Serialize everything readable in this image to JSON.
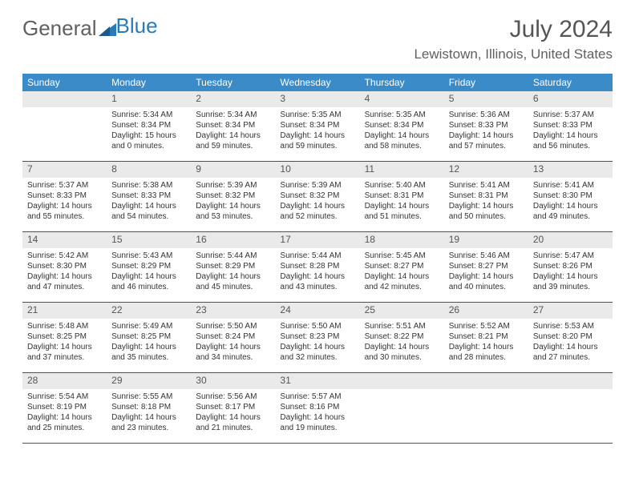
{
  "logo": {
    "text1": "General",
    "text2": "Blue"
  },
  "title": "July 2024",
  "location": "Lewistown, Illinois, United States",
  "colors": {
    "header_bg": "#3b8bc9",
    "daynum_bg": "#eaeaea",
    "border": "#2a5a8a",
    "text": "#333333",
    "logo_gray": "#606060",
    "logo_blue": "#2a7ab8"
  },
  "weekdays": [
    "Sunday",
    "Monday",
    "Tuesday",
    "Wednesday",
    "Thursday",
    "Friday",
    "Saturday"
  ],
  "weeks": [
    {
      "nums": [
        "",
        "1",
        "2",
        "3",
        "4",
        "5",
        "6"
      ],
      "cells": [
        null,
        {
          "sunrise": "Sunrise: 5:34 AM",
          "sunset": "Sunset: 8:34 PM",
          "day1": "Daylight: 15 hours",
          "day2": "and 0 minutes."
        },
        {
          "sunrise": "Sunrise: 5:34 AM",
          "sunset": "Sunset: 8:34 PM",
          "day1": "Daylight: 14 hours",
          "day2": "and 59 minutes."
        },
        {
          "sunrise": "Sunrise: 5:35 AM",
          "sunset": "Sunset: 8:34 PM",
          "day1": "Daylight: 14 hours",
          "day2": "and 59 minutes."
        },
        {
          "sunrise": "Sunrise: 5:35 AM",
          "sunset": "Sunset: 8:34 PM",
          "day1": "Daylight: 14 hours",
          "day2": "and 58 minutes."
        },
        {
          "sunrise": "Sunrise: 5:36 AM",
          "sunset": "Sunset: 8:33 PM",
          "day1": "Daylight: 14 hours",
          "day2": "and 57 minutes."
        },
        {
          "sunrise": "Sunrise: 5:37 AM",
          "sunset": "Sunset: 8:33 PM",
          "day1": "Daylight: 14 hours",
          "day2": "and 56 minutes."
        }
      ]
    },
    {
      "nums": [
        "7",
        "8",
        "9",
        "10",
        "11",
        "12",
        "13"
      ],
      "cells": [
        {
          "sunrise": "Sunrise: 5:37 AM",
          "sunset": "Sunset: 8:33 PM",
          "day1": "Daylight: 14 hours",
          "day2": "and 55 minutes."
        },
        {
          "sunrise": "Sunrise: 5:38 AM",
          "sunset": "Sunset: 8:33 PM",
          "day1": "Daylight: 14 hours",
          "day2": "and 54 minutes."
        },
        {
          "sunrise": "Sunrise: 5:39 AM",
          "sunset": "Sunset: 8:32 PM",
          "day1": "Daylight: 14 hours",
          "day2": "and 53 minutes."
        },
        {
          "sunrise": "Sunrise: 5:39 AM",
          "sunset": "Sunset: 8:32 PM",
          "day1": "Daylight: 14 hours",
          "day2": "and 52 minutes."
        },
        {
          "sunrise": "Sunrise: 5:40 AM",
          "sunset": "Sunset: 8:31 PM",
          "day1": "Daylight: 14 hours",
          "day2": "and 51 minutes."
        },
        {
          "sunrise": "Sunrise: 5:41 AM",
          "sunset": "Sunset: 8:31 PM",
          "day1": "Daylight: 14 hours",
          "day2": "and 50 minutes."
        },
        {
          "sunrise": "Sunrise: 5:41 AM",
          "sunset": "Sunset: 8:30 PM",
          "day1": "Daylight: 14 hours",
          "day2": "and 49 minutes."
        }
      ]
    },
    {
      "nums": [
        "14",
        "15",
        "16",
        "17",
        "18",
        "19",
        "20"
      ],
      "cells": [
        {
          "sunrise": "Sunrise: 5:42 AM",
          "sunset": "Sunset: 8:30 PM",
          "day1": "Daylight: 14 hours",
          "day2": "and 47 minutes."
        },
        {
          "sunrise": "Sunrise: 5:43 AM",
          "sunset": "Sunset: 8:29 PM",
          "day1": "Daylight: 14 hours",
          "day2": "and 46 minutes."
        },
        {
          "sunrise": "Sunrise: 5:44 AM",
          "sunset": "Sunset: 8:29 PM",
          "day1": "Daylight: 14 hours",
          "day2": "and 45 minutes."
        },
        {
          "sunrise": "Sunrise: 5:44 AM",
          "sunset": "Sunset: 8:28 PM",
          "day1": "Daylight: 14 hours",
          "day2": "and 43 minutes."
        },
        {
          "sunrise": "Sunrise: 5:45 AM",
          "sunset": "Sunset: 8:27 PM",
          "day1": "Daylight: 14 hours",
          "day2": "and 42 minutes."
        },
        {
          "sunrise": "Sunrise: 5:46 AM",
          "sunset": "Sunset: 8:27 PM",
          "day1": "Daylight: 14 hours",
          "day2": "and 40 minutes."
        },
        {
          "sunrise": "Sunrise: 5:47 AM",
          "sunset": "Sunset: 8:26 PM",
          "day1": "Daylight: 14 hours",
          "day2": "and 39 minutes."
        }
      ]
    },
    {
      "nums": [
        "21",
        "22",
        "23",
        "24",
        "25",
        "26",
        "27"
      ],
      "cells": [
        {
          "sunrise": "Sunrise: 5:48 AM",
          "sunset": "Sunset: 8:25 PM",
          "day1": "Daylight: 14 hours",
          "day2": "and 37 minutes."
        },
        {
          "sunrise": "Sunrise: 5:49 AM",
          "sunset": "Sunset: 8:25 PM",
          "day1": "Daylight: 14 hours",
          "day2": "and 35 minutes."
        },
        {
          "sunrise": "Sunrise: 5:50 AM",
          "sunset": "Sunset: 8:24 PM",
          "day1": "Daylight: 14 hours",
          "day2": "and 34 minutes."
        },
        {
          "sunrise": "Sunrise: 5:50 AM",
          "sunset": "Sunset: 8:23 PM",
          "day1": "Daylight: 14 hours",
          "day2": "and 32 minutes."
        },
        {
          "sunrise": "Sunrise: 5:51 AM",
          "sunset": "Sunset: 8:22 PM",
          "day1": "Daylight: 14 hours",
          "day2": "and 30 minutes."
        },
        {
          "sunrise": "Sunrise: 5:52 AM",
          "sunset": "Sunset: 8:21 PM",
          "day1": "Daylight: 14 hours",
          "day2": "and 28 minutes."
        },
        {
          "sunrise": "Sunrise: 5:53 AM",
          "sunset": "Sunset: 8:20 PM",
          "day1": "Daylight: 14 hours",
          "day2": "and 27 minutes."
        }
      ]
    },
    {
      "nums": [
        "28",
        "29",
        "30",
        "31",
        "",
        "",
        ""
      ],
      "cells": [
        {
          "sunrise": "Sunrise: 5:54 AM",
          "sunset": "Sunset: 8:19 PM",
          "day1": "Daylight: 14 hours",
          "day2": "and 25 minutes."
        },
        {
          "sunrise": "Sunrise: 5:55 AM",
          "sunset": "Sunset: 8:18 PM",
          "day1": "Daylight: 14 hours",
          "day2": "and 23 minutes."
        },
        {
          "sunrise": "Sunrise: 5:56 AM",
          "sunset": "Sunset: 8:17 PM",
          "day1": "Daylight: 14 hours",
          "day2": "and 21 minutes."
        },
        {
          "sunrise": "Sunrise: 5:57 AM",
          "sunset": "Sunset: 8:16 PM",
          "day1": "Daylight: 14 hours",
          "day2": "and 19 minutes."
        },
        null,
        null,
        null
      ]
    }
  ]
}
